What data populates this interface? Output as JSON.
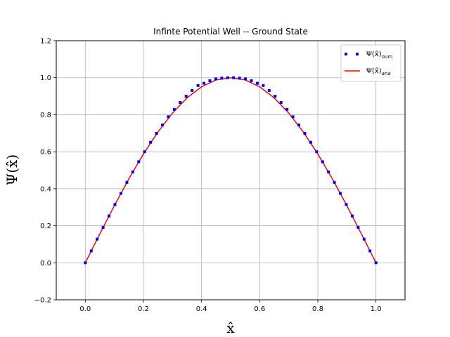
{
  "chart_data": {
    "type": "line",
    "title": "Infinte Potential Well -- Ground State",
    "xlabel": "x̂",
    "ylabel": "Ψ(x̂)",
    "xlim": [
      -0.1,
      1.1
    ],
    "ylim": [
      -0.2,
      1.2
    ],
    "xticks": [
      0.0,
      0.2,
      0.4,
      0.6,
      0.8,
      1.0
    ],
    "xtick_labels": [
      "0.0",
      "0.2",
      "0.4",
      "0.6",
      "0.8",
      "1.0"
    ],
    "yticks": [
      -0.2,
      0.0,
      0.2,
      0.4,
      0.6,
      0.8,
      1.0,
      1.2
    ],
    "ytick_labels": [
      "−0.2",
      "0.0",
      "0.2",
      "0.4",
      "0.6",
      "0.8",
      "1.0",
      "1.2"
    ],
    "grid": true,
    "legend_position": "top-right",
    "series": [
      {
        "name": "Ψ(x̂)_num",
        "legend_main": "Ψ(x̂)",
        "legend_sub": "num",
        "style": "dotted-squares",
        "color": "#0000ff",
        "x": [
          0.0,
          0.0204,
          0.0408,
          0.0612,
          0.0816,
          0.102,
          0.1224,
          0.1429,
          0.1633,
          0.1837,
          0.2041,
          0.2245,
          0.2449,
          0.2653,
          0.2857,
          0.3061,
          0.3265,
          0.3469,
          0.3673,
          0.3878,
          0.4082,
          0.4286,
          0.449,
          0.4694,
          0.4898,
          0.5102,
          0.5306,
          0.551,
          0.5714,
          0.5918,
          0.6122,
          0.6327,
          0.6531,
          0.6735,
          0.6939,
          0.7143,
          0.7347,
          0.7551,
          0.7755,
          0.7959,
          0.8163,
          0.8367,
          0.8571,
          0.8776,
          0.898,
          0.9184,
          0.9388,
          0.9592,
          0.9796,
          1.0
        ],
        "y": [
          0.0,
          0.064,
          0.128,
          0.191,
          0.253,
          0.315,
          0.375,
          0.434,
          0.491,
          0.546,
          0.6,
          0.651,
          0.699,
          0.745,
          0.789,
          0.829,
          0.866,
          0.9,
          0.931,
          0.958,
          0.97,
          0.984,
          0.994,
          0.998,
          1.0,
          1.0,
          0.998,
          0.994,
          0.984,
          0.97,
          0.958,
          0.931,
          0.9,
          0.866,
          0.829,
          0.789,
          0.745,
          0.699,
          0.651,
          0.6,
          0.546,
          0.491,
          0.434,
          0.375,
          0.315,
          0.253,
          0.191,
          0.128,
          0.064,
          0.0
        ]
      },
      {
        "name": "Ψ(x̂)_ana",
        "legend_main": "Ψ(x̂)",
        "legend_sub": "ana",
        "style": "solid-line",
        "color": "#ff0000",
        "x": [
          0.0,
          0.05,
          0.1,
          0.15,
          0.2,
          0.25,
          0.3,
          0.35,
          0.4,
          0.45,
          0.5,
          0.55,
          0.6,
          0.65,
          0.7,
          0.75,
          0.8,
          0.85,
          0.9,
          0.95,
          1.0
        ],
        "y": [
          0.0,
          0.156,
          0.309,
          0.454,
          0.588,
          0.707,
          0.809,
          0.891,
          0.951,
          0.988,
          1.0,
          0.988,
          0.951,
          0.891,
          0.809,
          0.707,
          0.588,
          0.454,
          0.309,
          0.156,
          0.0
        ]
      }
    ]
  }
}
